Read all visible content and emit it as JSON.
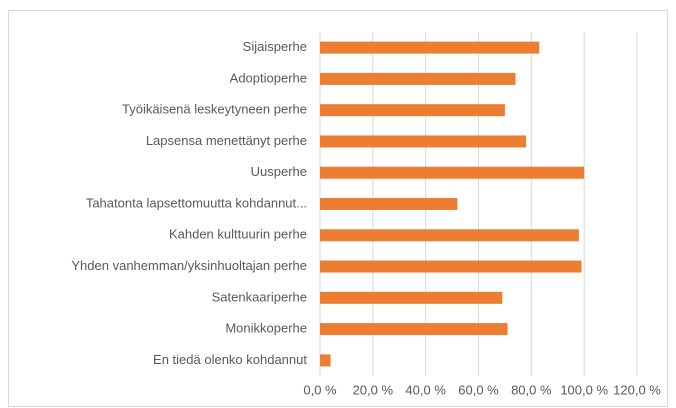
{
  "chart_data": {
    "type": "bar",
    "orientation": "horizontal",
    "categories": [
      "Sijaisperhe",
      "Adoptioperhe",
      "Työikäisenä leskeytyneen perhe",
      "Lapsensa menettänyt perhe",
      "Uusperhe",
      "Tahatonta lapsettomuutta kohdannut...",
      "Kahden kulttuurin perhe",
      "Yhden vanhemman/yksinhuoltajan perhe",
      "Satenkaariperhe",
      "Monikkoperhe",
      "En tiedä olenko kohdannut"
    ],
    "values": [
      83,
      74,
      70,
      78,
      100,
      52,
      98,
      99,
      69,
      71,
      4
    ],
    "color": "#ed7d31",
    "xlim": [
      0,
      120
    ],
    "xticks": [
      {
        "value": 0,
        "label": "0,0 %"
      },
      {
        "value": 20,
        "label": "20,0 %"
      },
      {
        "value": 40,
        "label": "40,0 %"
      },
      {
        "value": 60,
        "label": "60,0 %"
      },
      {
        "value": 80,
        "label": "80,0 %"
      },
      {
        "value": 100,
        "label": "100,0 %"
      },
      {
        "value": 120,
        "label": "120,0 %"
      }
    ],
    "grid": true
  }
}
